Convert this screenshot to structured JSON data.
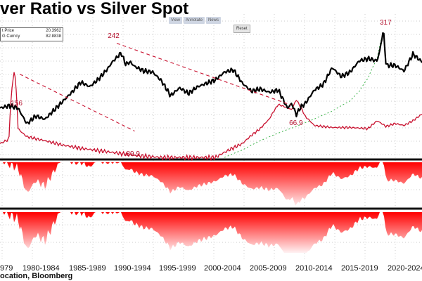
{
  "title": "ver Ratio vs Silver Spot",
  "source": "ocation, Bloomberg",
  "toolbar": {
    "btn1": "View",
    "btn2": "Annotate",
    "btn3": "News",
    "reset_label": "Reset"
  },
  "legend": {
    "row1": {
      "label": "t Price",
      "value": "20.3962"
    },
    "row2": {
      "label": "G Curncy",
      "value": "82.8838"
    }
  },
  "colors": {
    "ratio": "#c8102e",
    "silver": "#000000",
    "fill": "#e8001c",
    "trend": "#3cb34a"
  },
  "chart_data": {
    "type": "line",
    "x_tick_labels": [
      "979",
      "1980-1984",
      "1985-1989",
      "1990-1994",
      "1995-1999",
      "2000-2004",
      "2005-2009",
      "2010-2014",
      "2015-2019",
      "2020-2024"
    ],
    "annotations": [
      {
        "label": "242",
        "x": 1991.0
      },
      {
        "label": "156",
        "x": 1980.0
      },
      {
        "label": "-89.9",
        "x": 1993.0
      },
      {
        "label": "66.9",
        "x": 2010.5
      },
      {
        "label": "317",
        "x": 2020.5
      }
    ],
    "series": [
      {
        "name": "",
        "style": "black-line",
        "x": [
          1978,
          1979,
          1980,
          1981,
          1982,
          1983,
          1984,
          1985,
          1986,
          1987,
          1988,
          1989,
          1990,
          1990.5,
          1991,
          1991.5,
          1992,
          1992.5,
          1993,
          1994,
          1995,
          1996,
          1997,
          1998,
          1999,
          2000,
          2001,
          2002,
          2003,
          2004,
          2005,
          2006,
          2007,
          2008,
          2009,
          2010,
          2010.5,
          2011,
          2011.5,
          2012,
          2013,
          2014,
          2015,
          2016,
          2017,
          2018,
          2019,
          2020,
          2020.3,
          2020.7,
          2021,
          2022,
          2023,
          2024,
          2025
        ],
        "values": [
          3.2,
          3.4,
          3.2,
          1.8,
          2.5,
          2.2,
          3.0,
          3.8,
          4.6,
          5.5,
          5.1,
          5.8,
          6.7,
          7.3,
          7.7,
          8.1,
          7.1,
          7.3,
          6.9,
          6.5,
          6.4,
          5.6,
          4.3,
          5.0,
          4.5,
          5.1,
          5.4,
          5.7,
          6.4,
          6.6,
          5.4,
          4.7,
          4.9,
          4.6,
          4.8,
          3.2,
          3.6,
          2.6,
          3.3,
          3.6,
          4.8,
          5.3,
          6.8,
          6.0,
          6.4,
          7.4,
          7.6,
          7.4,
          8.3,
          10.2,
          7.0,
          7.0,
          6.5,
          8.0,
          7.3
        ]
      },
      {
        "name": "",
        "style": "red-line",
        "x": [
          1978,
          1979,
          1979.6,
          1980,
          1980.5,
          1981,
          1983,
          1985,
          1987,
          1990,
          1993,
          1996,
          1999,
          2002,
          2005,
          2007,
          2008,
          2009,
          2010,
          2010.5,
          2011,
          2012,
          2013,
          2015,
          2017,
          2019,
          2020,
          2021,
          2022,
          2023,
          2024,
          2025
        ],
        "values": [
          30,
          33,
          156,
          42,
          38,
          35,
          32,
          29,
          27,
          25,
          23,
          22,
          22,
          22,
          30,
          42,
          52,
          72,
          66.9,
          64,
          80,
          55,
          45,
          43,
          43,
          42,
          50,
          44,
          47,
          45,
          50,
          58
        ]
      },
      {
        "name": "",
        "style": "green-dashed",
        "x": [
          2003,
          2005,
          2007,
          2009,
          2011,
          2013,
          2015,
          2017,
          2018,
          2019,
          2020,
          2020.5
        ],
        "values": [
          22,
          26,
          32,
          38,
          44,
          52,
          62,
          78,
          96,
          130,
          200,
          317
        ]
      }
    ]
  }
}
